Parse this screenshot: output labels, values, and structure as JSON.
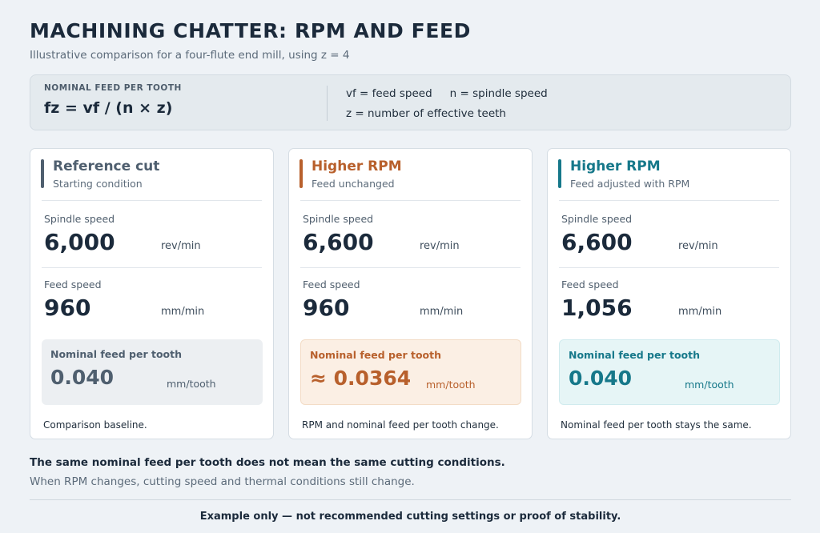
{
  "header": {
    "title": "MACHINING CHATTER: RPM AND FEED",
    "subtitle": "Illustrative comparison for a four-flute end mill, using z = 4"
  },
  "formula": {
    "heading": "NOMINAL FEED PER TOOTH",
    "expression": "fz = vf / (n × z)",
    "legend": {
      "vf": "vf = feed speed",
      "n": "n = spindle speed",
      "z": "z = number of effective teeth"
    }
  },
  "colors": {
    "reference": "#4f5f6f",
    "higher_rpm_unchanged": "#b8602c",
    "higher_rpm_adjusted": "#16788a"
  },
  "cards": [
    {
      "title": "Reference cut",
      "subtitle": "Starting condition",
      "spindle_label": "Spindle speed",
      "spindle_value": "6,000",
      "spindle_unit": "rev/min",
      "feed_label": "Feed speed",
      "feed_value": "960",
      "feed_unit": "mm/min",
      "fpt_label": "Nominal feed per tooth",
      "fpt_value": "0.040",
      "fpt_unit": "mm/tooth",
      "note": "Comparison baseline."
    },
    {
      "title": "Higher RPM",
      "subtitle": "Feed unchanged",
      "spindle_label": "Spindle speed",
      "spindle_value": "6,600",
      "spindle_unit": "rev/min",
      "feed_label": "Feed speed",
      "feed_value": "960",
      "feed_unit": "mm/min",
      "fpt_label": "Nominal feed per tooth",
      "fpt_value": "≈ 0.0364",
      "fpt_unit": "mm/tooth",
      "note": "RPM and nominal feed per tooth change."
    },
    {
      "title": "Higher RPM",
      "subtitle": "Feed adjusted with RPM",
      "spindle_label": "Spindle speed",
      "spindle_value": "6,600",
      "spindle_unit": "rev/min",
      "feed_label": "Feed speed",
      "feed_value": "1,056",
      "feed_unit": "mm/min",
      "fpt_label": "Nominal feed per tooth",
      "fpt_value": "0.040",
      "fpt_unit": "mm/tooth",
      "note": "Nominal feed per tooth stays the same."
    }
  ],
  "footer": {
    "takeaway": "The same nominal feed per tooth does not mean the same cutting conditions.",
    "detail": "When RPM changes, cutting speed and thermal conditions still change.",
    "disclaimer": "Example only — not recommended cutting settings or proof of stability."
  }
}
